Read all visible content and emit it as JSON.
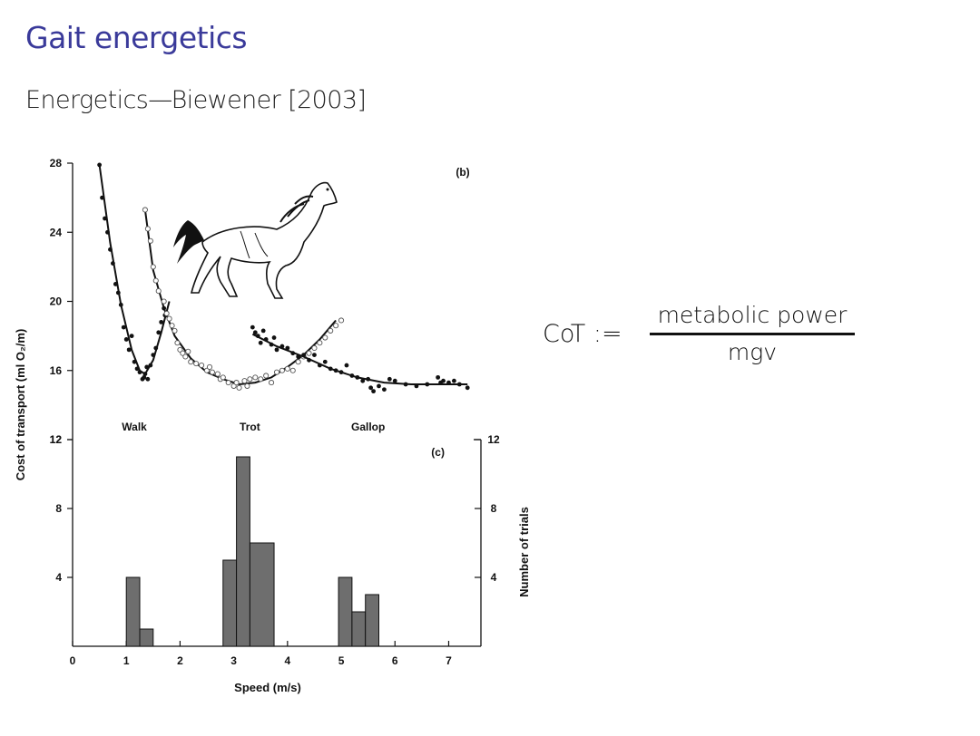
{
  "slide": {
    "title": "Gait energetics",
    "subtitle": "Energetics—Biewener [2003]"
  },
  "formula": {
    "lhs": "CoT :=",
    "numerator": "metabolic power",
    "denominator": "mgv"
  },
  "chart_data": [
    {
      "type": "scatter",
      "panel_label": "(b)",
      "xlabel": "",
      "ylabel": "Cost of transport (ml O₂/m)",
      "xlim": [
        0,
        7.6
      ],
      "ylim": [
        12,
        28
      ],
      "yticks": [
        12,
        16,
        20,
        24,
        28
      ],
      "gait_labels": [
        {
          "text": "Walk",
          "x": 1.15
        },
        {
          "text": "Trot",
          "x": 3.3
        },
        {
          "text": "Gallop",
          "x": 5.5
        }
      ],
      "series": [
        {
          "marker": "filled",
          "points": [
            [
              0.5,
              27.9
            ],
            [
              0.55,
              26.0
            ],
            [
              0.6,
              24.8
            ],
            [
              0.65,
              24.0
            ],
            [
              0.7,
              23.0
            ],
            [
              0.75,
              22.2
            ],
            [
              0.8,
              21.0
            ],
            [
              0.85,
              20.5
            ],
            [
              0.9,
              19.8
            ],
            [
              0.95,
              18.5
            ],
            [
              1.0,
              17.8
            ],
            [
              1.05,
              17.2
            ],
            [
              1.1,
              18.0
            ],
            [
              1.15,
              16.5
            ],
            [
              1.2,
              16.1
            ],
            [
              1.25,
              15.9
            ],
            [
              1.3,
              15.5
            ],
            [
              1.33,
              15.6
            ],
            [
              1.35,
              15.8
            ],
            [
              1.38,
              16.2
            ],
            [
              1.4,
              15.5
            ],
            [
              1.45,
              16.3
            ],
            [
              1.5,
              16.9
            ],
            [
              1.55,
              17.3
            ],
            [
              1.6,
              18.2
            ],
            [
              1.65,
              18.8
            ],
            [
              1.7,
              19.6
            ],
            [
              1.72,
              19.2
            ]
          ],
          "fit": [
            [
              0.5,
              27.9
            ],
            [
              0.7,
              23.4
            ],
            [
              0.9,
              19.8
            ],
            [
              1.1,
              17.2
            ],
            [
              1.25,
              16.0
            ],
            [
              1.35,
              15.8
            ],
            [
              1.5,
              16.6
            ],
            [
              1.65,
              18.2
            ],
            [
              1.8,
              20.0
            ]
          ]
        },
        {
          "marker": "open",
          "points": [
            [
              1.35,
              25.3
            ],
            [
              1.4,
              24.2
            ],
            [
              1.45,
              23.5
            ],
            [
              1.5,
              22.0
            ],
            [
              1.55,
              21.2
            ],
            [
              1.6,
              20.6
            ],
            [
              1.7,
              20.0
            ],
            [
              1.75,
              19.3
            ],
            [
              1.8,
              19.0
            ],
            [
              1.85,
              18.6
            ],
            [
              1.9,
              18.3
            ],
            [
              1.95,
              17.6
            ],
            [
              2.0,
              17.2
            ],
            [
              2.05,
              17.0
            ],
            [
              2.1,
              16.8
            ],
            [
              2.15,
              17.1
            ],
            [
              2.2,
              16.5
            ],
            [
              2.3,
              16.4
            ],
            [
              2.4,
              16.3
            ],
            [
              2.5,
              16.0
            ],
            [
              2.55,
              16.2
            ],
            [
              2.6,
              15.9
            ],
            [
              2.7,
              15.8
            ],
            [
              2.75,
              15.5
            ],
            [
              2.8,
              15.6
            ],
            [
              2.9,
              15.3
            ],
            [
              3.0,
              15.1
            ],
            [
              3.05,
              15.3
            ],
            [
              3.1,
              15.0
            ],
            [
              3.2,
              15.4
            ],
            [
              3.25,
              15.1
            ],
            [
              3.3,
              15.5
            ],
            [
              3.4,
              15.6
            ],
            [
              3.5,
              15.5
            ],
            [
              3.6,
              15.7
            ],
            [
              3.7,
              15.3
            ],
            [
              3.8,
              15.9
            ],
            [
              3.9,
              16.0
            ],
            [
              4.0,
              16.1
            ],
            [
              4.1,
              16.0
            ],
            [
              4.2,
              16.5
            ],
            [
              4.3,
              16.8
            ],
            [
              4.4,
              17.0
            ],
            [
              4.5,
              17.3
            ],
            [
              4.6,
              17.6
            ],
            [
              4.7,
              17.9
            ],
            [
              4.8,
              18.3
            ],
            [
              4.9,
              18.6
            ],
            [
              5.0,
              18.9
            ]
          ],
          "fit": [
            [
              1.35,
              25.3
            ],
            [
              1.5,
              21.8
            ],
            [
              1.7,
              19.6
            ],
            [
              1.9,
              18.0
            ],
            [
              2.2,
              16.7
            ],
            [
              2.5,
              15.9
            ],
            [
              2.8,
              15.5
            ],
            [
              3.1,
              15.2
            ],
            [
              3.4,
              15.3
            ],
            [
              3.7,
              15.6
            ],
            [
              4.0,
              16.2
            ],
            [
              4.3,
              16.9
            ],
            [
              4.6,
              17.8
            ],
            [
              4.9,
              18.9
            ]
          ]
        },
        {
          "marker": "filled",
          "points": [
            [
              3.35,
              18.5
            ],
            [
              3.4,
              18.2
            ],
            [
              3.45,
              18.0
            ],
            [
              3.5,
              17.6
            ],
            [
              3.55,
              18.3
            ],
            [
              3.6,
              17.8
            ],
            [
              3.7,
              17.5
            ],
            [
              3.75,
              17.9
            ],
            [
              3.8,
              17.2
            ],
            [
              3.9,
              17.4
            ],
            [
              4.0,
              17.3
            ],
            [
              4.1,
              17.0
            ],
            [
              4.2,
              16.8
            ],
            [
              4.3,
              16.9
            ],
            [
              4.4,
              16.6
            ],
            [
              4.5,
              16.9
            ],
            [
              4.6,
              16.3
            ],
            [
              4.7,
              16.5
            ],
            [
              4.8,
              16.1
            ],
            [
              4.9,
              16.0
            ],
            [
              5.0,
              15.9
            ],
            [
              5.1,
              16.3
            ],
            [
              5.2,
              15.7
            ],
            [
              5.3,
              15.6
            ],
            [
              5.4,
              15.4
            ],
            [
              5.5,
              15.5
            ],
            [
              5.55,
              15.0
            ],
            [
              5.6,
              14.8
            ],
            [
              5.7,
              15.1
            ],
            [
              5.8,
              14.9
            ],
            [
              5.9,
              15.5
            ],
            [
              6.0,
              15.4
            ],
            [
              6.2,
              15.2
            ],
            [
              6.4,
              15.1
            ],
            [
              6.6,
              15.2
            ],
            [
              6.8,
              15.6
            ],
            [
              6.85,
              15.3
            ],
            [
              6.9,
              15.4
            ],
            [
              7.0,
              15.3
            ],
            [
              7.1,
              15.4
            ],
            [
              7.2,
              15.2
            ],
            [
              7.35,
              15.0
            ]
          ],
          "fit": [
            [
              3.35,
              18.1
            ],
            [
              3.8,
              17.4
            ],
            [
              4.3,
              16.8
            ],
            [
              4.8,
              16.1
            ],
            [
              5.3,
              15.6
            ],
            [
              5.8,
              15.3
            ],
            [
              6.3,
              15.2
            ],
            [
              6.8,
              15.2
            ],
            [
              7.35,
              15.2
            ]
          ]
        }
      ]
    },
    {
      "type": "bar",
      "panel_label": "(c)",
      "xlabel": "Speed (m/s)",
      "ylabel": "Cost of transport (ml O₂/m)",
      "y2label": "Number of trials",
      "xlim": [
        0,
        7.6
      ],
      "ylim": [
        0,
        12
      ],
      "xticks": [
        0,
        1,
        2,
        3,
        4,
        5,
        6,
        7
      ],
      "yticks": [
        4,
        8,
        12
      ],
      "bins": [
        {
          "x0": 1.0,
          "x1": 1.25,
          "count": 4
        },
        {
          "x0": 1.25,
          "x1": 1.5,
          "count": 1
        },
        {
          "x0": 2.8,
          "x1": 3.05,
          "count": 5
        },
        {
          "x0": 3.05,
          "x1": 3.3,
          "count": 11
        },
        {
          "x0": 3.3,
          "x1": 3.75,
          "count": 6
        },
        {
          "x0": 4.95,
          "x1": 5.2,
          "count": 4
        },
        {
          "x0": 5.2,
          "x1": 5.45,
          "count": 2
        },
        {
          "x0": 5.45,
          "x1": 5.7,
          "count": 3
        }
      ]
    }
  ],
  "colors": {
    "title": "#3a3a9a",
    "bar_fill": "#6e6e6e",
    "ink": "#111111"
  },
  "illustration": {
    "icon": "horse-galloping-icon"
  }
}
